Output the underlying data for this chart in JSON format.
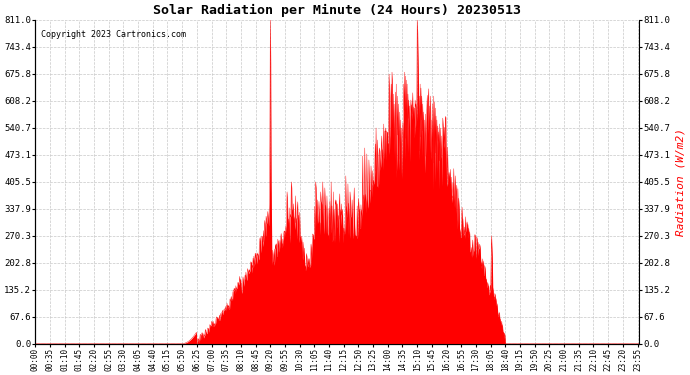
{
  "title": "Solar Radiation per Minute (24 Hours) 20230513",
  "ylabel": "Radiation (W/m2)",
  "copyright": "Copyright 2023 Cartronics.com",
  "background_color": "#ffffff",
  "fill_color": "#ff0000",
  "line_color": "#ff0000",
  "ylabel_color": "#ff0000",
  "dashed_line_color": "#c8c8c8",
  "bottom_line_color": "#ff0000",
  "ylim": [
    0.0,
    811.0
  ],
  "yticks": [
    0.0,
    67.6,
    135.2,
    202.8,
    270.3,
    337.9,
    405.5,
    473.1,
    540.7,
    608.2,
    675.8,
    743.4,
    811.0
  ],
  "xtick_labels": [
    "00:00",
    "00:35",
    "01:10",
    "01:45",
    "02:20",
    "02:55",
    "03:30",
    "04:05",
    "04:40",
    "05:15",
    "05:50",
    "06:25",
    "07:00",
    "07:35",
    "08:10",
    "08:45",
    "09:20",
    "09:55",
    "10:30",
    "11:05",
    "11:40",
    "12:15",
    "12:50",
    "13:25",
    "14:00",
    "14:35",
    "15:10",
    "15:45",
    "16:20",
    "16:55",
    "17:30",
    "18:05",
    "18:40",
    "19:15",
    "19:50",
    "20:25",
    "21:00",
    "21:35",
    "22:10",
    "22:45",
    "23:20",
    "23:55"
  ],
  "figsize": [
    6.9,
    3.75
  ],
  "dpi": 100
}
